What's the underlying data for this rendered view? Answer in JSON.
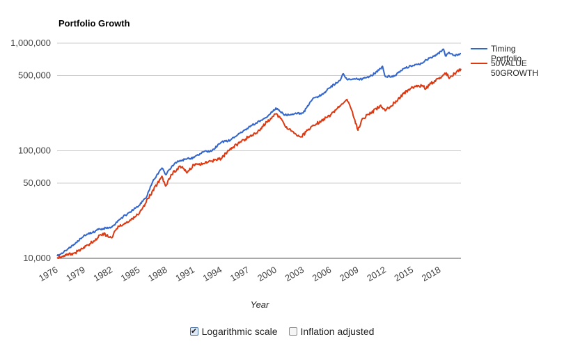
{
  "chart_data": {
    "type": "line",
    "title": "Portfolio Growth",
    "xlabel": "Year",
    "ylabel": "",
    "y_scale": "log",
    "ylim": [
      10000,
      1000000
    ],
    "xlim": [
      1976.0,
      2020.3
    ],
    "y_ticks": [
      10000,
      50000,
      100000,
      500000,
      1000000
    ],
    "y_tick_labels": [
      "10,000",
      "50,000",
      "100,000",
      "500,000",
      "1,000,000"
    ],
    "x_ticks": [
      "1976",
      "1979",
      "1982",
      "1985",
      "1988",
      "1991",
      "1994",
      "1997",
      "2000",
      "2003",
      "2006",
      "2009",
      "2012",
      "2015",
      "2018"
    ],
    "grid": true,
    "legend_position": "right",
    "series": [
      {
        "name": "Timing Portfolio",
        "color": "#3366cc",
        "points": [
          [
            1976.0,
            10500
          ],
          [
            1977.0,
            11800
          ],
          [
            1978.0,
            13800
          ],
          [
            1979.0,
            16500
          ],
          [
            1979.8,
            17200
          ],
          [
            1980.5,
            18500
          ],
          [
            1982.0,
            19500
          ],
          [
            1983.0,
            23500
          ],
          [
            1984.0,
            27000
          ],
          [
            1985.0,
            31000
          ],
          [
            1985.8,
            37000
          ],
          [
            1986.5,
            52000
          ],
          [
            1987.5,
            69000
          ],
          [
            1987.9,
            60000
          ],
          [
            1989.0,
            78000
          ],
          [
            1990.0,
            83000
          ],
          [
            1991.0,
            86000
          ],
          [
            1992.0,
            97000
          ],
          [
            1993.0,
            100000
          ],
          [
            1994.0,
            120000
          ],
          [
            1995.0,
            125000
          ],
          [
            1996.0,
            145000
          ],
          [
            1997.0,
            165000
          ],
          [
            1998.0,
            185000
          ],
          [
            1999.0,
            205000
          ],
          [
            2000.0,
            250000
          ],
          [
            2000.5,
            230000
          ],
          [
            2001.0,
            215000
          ],
          [
            2002.0,
            220000
          ],
          [
            2003.0,
            225000
          ],
          [
            2004.0,
            300000
          ],
          [
            2005.0,
            330000
          ],
          [
            2006.0,
            390000
          ],
          [
            2007.0,
            450000
          ],
          [
            2007.4,
            520000
          ],
          [
            2007.8,
            460000
          ],
          [
            2008.5,
            462000
          ],
          [
            2009.5,
            465000
          ],
          [
            2010.5,
            500000
          ],
          [
            2011.3,
            560000
          ],
          [
            2011.7,
            610000
          ],
          [
            2012.0,
            490000
          ],
          [
            2013.0,
            495000
          ],
          [
            2014.0,
            580000
          ],
          [
            2015.0,
            620000
          ],
          [
            2016.0,
            650000
          ],
          [
            2016.5,
            700000
          ],
          [
            2017.5,
            760000
          ],
          [
            2018.4,
            880000
          ],
          [
            2018.6,
            760000
          ],
          [
            2019.0,
            820000
          ],
          [
            2019.6,
            770000
          ],
          [
            2020.3,
            800000
          ]
        ]
      },
      {
        "name": "50VALUE 50GROWTH",
        "color": "#dc3912",
        "points": [
          [
            1976.0,
            10200
          ],
          [
            1977.0,
            10700
          ],
          [
            1978.0,
            11300
          ],
          [
            1979.0,
            12500
          ],
          [
            1980.0,
            14500
          ],
          [
            1981.0,
            17000
          ],
          [
            1982.0,
            15500
          ],
          [
            1982.7,
            20000
          ],
          [
            1983.5,
            21000
          ],
          [
            1984.5,
            24000
          ],
          [
            1985.0,
            26000
          ],
          [
            1986.0,
            36000
          ],
          [
            1987.5,
            58000
          ],
          [
            1987.9,
            47000
          ],
          [
            1988.5,
            60000
          ],
          [
            1989.5,
            72000
          ],
          [
            1990.3,
            63000
          ],
          [
            1991.0,
            74000
          ],
          [
            1992.0,
            76000
          ],
          [
            1993.0,
            80000
          ],
          [
            1994.0,
            84000
          ],
          [
            1995.0,
            105000
          ],
          [
            1996.0,
            118000
          ],
          [
            1997.0,
            135000
          ],
          [
            1998.0,
            150000
          ],
          [
            1999.0,
            185000
          ],
          [
            2000.0,
            220000
          ],
          [
            2000.5,
            200000
          ],
          [
            2001.0,
            170000
          ],
          [
            2002.0,
            145000
          ],
          [
            2002.8,
            135000
          ],
          [
            2004.0,
            170000
          ],
          [
            2005.0,
            190000
          ],
          [
            2006.0,
            215000
          ],
          [
            2007.0,
            260000
          ],
          [
            2007.8,
            300000
          ],
          [
            2008.3,
            240000
          ],
          [
            2009.0,
            155000
          ],
          [
            2009.5,
            200000
          ],
          [
            2010.5,
            225000
          ],
          [
            2011.5,
            265000
          ],
          [
            2012.0,
            235000
          ],
          [
            2013.0,
            280000
          ],
          [
            2014.0,
            340000
          ],
          [
            2015.0,
            390000
          ],
          [
            2016.0,
            400000
          ],
          [
            2016.5,
            380000
          ],
          [
            2017.0,
            420000
          ],
          [
            2018.0,
            480000
          ],
          [
            2018.7,
            530000
          ],
          [
            2019.0,
            470000
          ],
          [
            2019.6,
            520000
          ],
          [
            2020.3,
            580000
          ]
        ]
      }
    ]
  },
  "controls": {
    "log_scale_label": "Logarithmic scale",
    "log_scale_checked": true,
    "inflation_label": "Inflation adjusted",
    "inflation_checked": false
  }
}
